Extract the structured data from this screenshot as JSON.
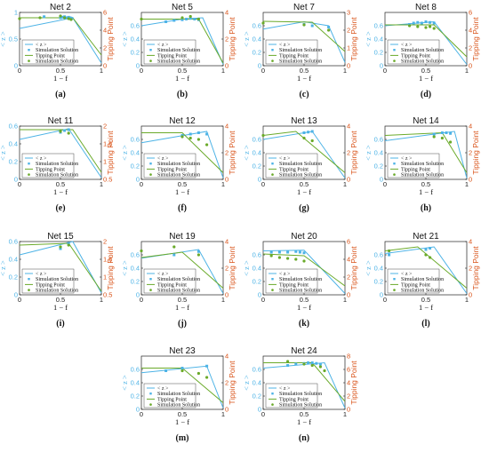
{
  "colors": {
    "blue": "#4db3e6",
    "green": "#6aaa2a",
    "orange": "#d95319",
    "axis": "#222222"
  },
  "panel_common": {
    "xlabel": "1 − f",
    "ylabel_left": "< z >",
    "ylabel_right": "Tipping Point",
    "xticks": [
      "0",
      "0.5",
      "1"
    ],
    "legend": [
      "< z >",
      "Simulation Solution",
      "Tipping Point",
      "Simulation Solution"
    ]
  },
  "chart_data": [
    {
      "type": "line",
      "title": "Net 2",
      "caption": "(a)",
      "xlim": [
        0,
        1
      ],
      "ylim_left": [
        0,
        1
      ],
      "yticks_left": [
        0,
        0.5,
        1
      ],
      "ylim_right": [
        0,
        6
      ],
      "yticks_right": [
        0,
        2,
        4,
        6
      ],
      "z_line": {
        "x": [
          0,
          0.65,
          1
        ],
        "y": [
          0.7,
          0.9,
          0.05
        ]
      },
      "z_points": {
        "x": [
          0.3,
          0.5,
          0.52,
          0.55,
          0.58,
          0.6,
          0.62,
          0.64
        ],
        "y": [
          0.92,
          0.9,
          0.91,
          0.92,
          0.9,
          0.91,
          0.9,
          0.89
        ]
      },
      "tp_line": {
        "x": [
          0,
          0.65,
          1
        ],
        "y": [
          5.4,
          5.4,
          1.2
        ]
      },
      "tp_points": {
        "x": [
          0,
          0.25,
          0.5,
          0.55,
          0.6,
          0.63
        ],
        "y": [
          5.3,
          5.4,
          5.6,
          5.4,
          5.3,
          5.2
        ]
      }
    },
    {
      "type": "line",
      "title": "Net 5",
      "caption": "(b)",
      "xlim": [
        0,
        1
      ],
      "ylim_left": [
        0,
        0.8
      ],
      "yticks_left": [
        0,
        0.2,
        0.4,
        0.6
      ],
      "ylim_right": [
        0,
        4
      ],
      "yticks_right": [
        0,
        2,
        4
      ],
      "z_line": {
        "x": [
          0,
          0.5,
          0.75,
          1
        ],
        "y": [
          0.6,
          0.7,
          0.72,
          0.02
        ]
      },
      "z_points": {
        "x": [
          0.3,
          0.4,
          0.5,
          0.55,
          0.6,
          0.65,
          0.7
        ],
        "y": [
          0.66,
          0.68,
          0.69,
          0.7,
          0.71,
          0.7,
          0.69
        ]
      },
      "tp_line": {
        "x": [
          0,
          0.7,
          1
        ],
        "y": [
          3.5,
          3.5,
          0.2
        ]
      },
      "tp_points": {
        "x": [
          0,
          0.5,
          0.6,
          0.7
        ],
        "y": [
          3.5,
          3.6,
          3.7,
          3.5
        ]
      }
    },
    {
      "type": "line",
      "title": "Net 7",
      "caption": "(c)",
      "xlim": [
        0,
        1
      ],
      "ylim_left": [
        0,
        0.8
      ],
      "yticks_left": [
        0,
        0.2,
        0.4,
        0.6
      ],
      "ylim_right": [
        0,
        3
      ],
      "yticks_right": [
        0,
        1,
        2,
        3
      ],
      "z_line": {
        "x": [
          0,
          0.5,
          0.8,
          1
        ],
        "y": [
          0.55,
          0.66,
          0.6,
          0.05
        ]
      },
      "z_points": {
        "x": [
          0.5,
          0.6,
          0.8
        ],
        "y": [
          0.62,
          0.6,
          0.58
        ]
      },
      "tp_line": {
        "x": [
          0,
          0.6,
          1
        ],
        "y": [
          2.5,
          2.45,
          0.8
        ]
      },
      "tp_points": {
        "x": [
          0,
          0.5,
          0.8
        ],
        "y": [
          2.4,
          2.3,
          2.0
        ]
      }
    },
    {
      "type": "line",
      "title": "Net 8",
      "caption": "(d)",
      "xlim": [
        0,
        1
      ],
      "ylim_left": [
        0,
        0.8
      ],
      "yticks_left": [
        0,
        0.2,
        0.4,
        0.6
      ],
      "ylim_right": [
        0,
        6
      ],
      "yticks_right": [
        0,
        2,
        4,
        6
      ],
      "z_line": {
        "x": [
          0,
          0.6,
          1
        ],
        "y": [
          0.6,
          0.66,
          0.02
        ]
      },
      "z_points": {
        "x": [
          0.3,
          0.35,
          0.4,
          0.45,
          0.5,
          0.55,
          0.6
        ],
        "y": [
          0.62,
          0.64,
          0.65,
          0.64,
          0.66,
          0.65,
          0.64
        ]
      },
      "tp_line": {
        "x": [
          0,
          0.6,
          1
        ],
        "y": [
          4.6,
          4.6,
          1.0
        ]
      },
      "tp_points": {
        "x": [
          0.3,
          0.4,
          0.5,
          0.55,
          0.6
        ],
        "y": [
          4.5,
          4.4,
          4.3,
          4.4,
          4.2
        ]
      }
    },
    {
      "type": "line",
      "title": "Net 11",
      "caption": "(e)",
      "xlim": [
        0,
        1
      ],
      "ylim_left": [
        0,
        0.6
      ],
      "yticks_left": [
        0,
        0.2,
        0.4,
        0.6
      ],
      "ylim_right": [
        0.5,
        2
      ],
      "yticks_right": [
        0.5,
        1,
        1.5,
        2
      ],
      "z_line": {
        "x": [
          0,
          0.6,
          1
        ],
        "y": [
          0.45,
          0.57,
          0.02
        ]
      },
      "z_points": {
        "x": [
          0.5,
          0.55,
          0.6
        ],
        "y": [
          0.53,
          0.55,
          0.56
        ]
      },
      "tp_line": {
        "x": [
          0,
          0.65,
          1
        ],
        "y": [
          1.9,
          1.9,
          0.7
        ]
      },
      "tp_points": {
        "x": [
          0.5,
          0.6
        ],
        "y": [
          1.85,
          1.8
        ]
      }
    },
    {
      "type": "line",
      "title": "Net 12",
      "caption": "(f)",
      "xlim": [
        0,
        1
      ],
      "ylim_left": [
        0,
        0.8
      ],
      "yticks_left": [
        0,
        0.2,
        0.4,
        0.6
      ],
      "ylim_right": [
        0,
        4
      ],
      "yticks_right": [
        0,
        2,
        4
      ],
      "z_line": {
        "x": [
          0,
          0.8,
          1
        ],
        "y": [
          0.55,
          0.72,
          0.02
        ]
      },
      "z_points": {
        "x": [
          0.5,
          0.6,
          0.7,
          0.8
        ],
        "y": [
          0.66,
          0.68,
          0.7,
          0.68
        ]
      },
      "tp_line": {
        "x": [
          0,
          0.5,
          1
        ],
        "y": [
          3.5,
          3.5,
          0.5
        ]
      },
      "tp_points": {
        "x": [
          0.5,
          0.6,
          0.7,
          0.8
        ],
        "y": [
          3.2,
          3.1,
          3.0,
          2.6
        ]
      }
    },
    {
      "type": "line",
      "title": "Net 13",
      "caption": "(g)",
      "xlim": [
        0,
        1
      ],
      "ylim_left": [
        0,
        0.8
      ],
      "yticks_left": [
        0,
        0.2,
        0.4,
        0.6
      ],
      "ylim_right": [
        0,
        4
      ],
      "yticks_right": [
        0,
        2,
        4
      ],
      "z_line": {
        "x": [
          0,
          0.6,
          1
        ],
        "y": [
          0.6,
          0.72,
          0.02
        ]
      },
      "z_points": {
        "x": [
          0.5,
          0.55,
          0.6
        ],
        "y": [
          0.7,
          0.71,
          0.72
        ]
      },
      "tp_line": {
        "x": [
          0,
          0.4,
          1
        ],
        "y": [
          3.3,
          3.6,
          0.5
        ]
      },
      "tp_points": {
        "x": [
          0,
          0.5,
          0.6
        ],
        "y": [
          3.3,
          3.1,
          2.9
        ]
      }
    },
    {
      "type": "line",
      "title": "Net 14",
      "caption": "(h)",
      "xlim": [
        0,
        1
      ],
      "ylim_left": [
        0,
        0.8
      ],
      "yticks_left": [
        0,
        0.2,
        0.4,
        0.6
      ],
      "ylim_right": [
        0,
        4
      ],
      "yticks_right": [
        0,
        2,
        4
      ],
      "z_line": {
        "x": [
          0,
          0.85,
          1
        ],
        "y": [
          0.58,
          0.72,
          0.02
        ]
      },
      "z_points": {
        "x": [
          0.6,
          0.7,
          0.75,
          0.8
        ],
        "y": [
          0.68,
          0.7,
          0.7,
          0.69
        ]
      },
      "tp_line": {
        "x": [
          0,
          0.7,
          1
        ],
        "y": [
          3.3,
          3.5,
          0.5
        ]
      },
      "tp_points": {
        "x": [
          0.6,
          0.7,
          0.8
        ],
        "y": [
          3.2,
          3.1,
          2.8
        ]
      }
    },
    {
      "type": "line",
      "title": "Net 15",
      "caption": "(i)",
      "xlim": [
        0,
        1
      ],
      "ylim_left": [
        0,
        0.6
      ],
      "yticks_left": [
        0,
        0.2,
        0.4,
        0.6
      ],
      "ylim_right": [
        0.5,
        2
      ],
      "yticks_right": [
        0.5,
        1,
        1.5,
        2
      ],
      "z_line": {
        "x": [
          0,
          0.65,
          1
        ],
        "y": [
          0.45,
          0.6,
          0.02
        ]
      },
      "z_points": {
        "x": [
          0.5,
          0.6
        ],
        "y": [
          0.52,
          0.58
        ]
      },
      "tp_line": {
        "x": [
          0,
          0.6,
          1
        ],
        "y": [
          1.9,
          1.95,
          0.6
        ]
      },
      "tp_points": {
        "x": [
          0.5,
          0.6
        ],
        "y": [
          1.85,
          1.9
        ]
      }
    },
    {
      "type": "line",
      "title": "Net 19",
      "caption": "(j)",
      "xlim": [
        0,
        1
      ],
      "ylim_left": [
        0,
        0.8
      ],
      "yticks_left": [
        0,
        0.2,
        0.4,
        0.6
      ],
      "ylim_right": [
        0,
        4
      ],
      "yticks_right": [
        0,
        2,
        4
      ],
      "z_line": {
        "x": [
          0,
          0.7,
          1
        ],
        "y": [
          0.55,
          0.68,
          0.02
        ]
      },
      "z_points": {
        "x": [
          0.4,
          0.7
        ],
        "y": [
          0.6,
          0.65
        ]
      },
      "tp_line": {
        "x": [
          0,
          0.5,
          1
        ],
        "y": [
          2.8,
          3.2,
          0.5
        ]
      },
      "tp_points": {
        "x": [
          0,
          0.4,
          0.7
        ],
        "y": [
          3.3,
          3.6,
          3.0
        ]
      }
    },
    {
      "type": "line",
      "title": "Net 20",
      "caption": "(k)",
      "xlim": [
        0,
        1
      ],
      "ylim_left": [
        0,
        0.8
      ],
      "yticks_left": [
        0,
        0.2,
        0.4,
        0.6
      ],
      "ylim_right": [
        0,
        6
      ],
      "yticks_right": [
        0,
        2,
        4,
        6
      ],
      "z_line": {
        "x": [
          0,
          0.5,
          1
        ],
        "y": [
          0.66,
          0.67,
          0.02
        ]
      },
      "z_points": {
        "x": [
          0.1,
          0.2,
          0.3,
          0.4,
          0.45,
          0.5
        ],
        "y": [
          0.64,
          0.64,
          0.64,
          0.65,
          0.64,
          0.63
        ]
      },
      "tp_line": {
        "x": [
          0,
          0.5,
          1
        ],
        "y": [
          4.6,
          4.4,
          1.0
        ]
      },
      "tp_points": {
        "x": [
          0.1,
          0.2,
          0.3,
          0.4,
          0.5
        ],
        "y": [
          4.4,
          4.2,
          4.1,
          4.0,
          3.8
        ]
      }
    },
    {
      "type": "line",
      "title": "Net 21",
      "caption": "(l)",
      "xlim": [
        0,
        1
      ],
      "ylim_left": [
        0,
        0.8
      ],
      "yticks_left": [
        0,
        0.2,
        0.4,
        0.6
      ],
      "ylim_right": [
        0,
        4
      ],
      "yticks_right": [
        0,
        2,
        4
      ],
      "z_line": {
        "x": [
          0,
          0.6,
          1
        ],
        "y": [
          0.62,
          0.72,
          0.02
        ]
      },
      "z_points": {
        "x": [
          0.05,
          0.5,
          0.55
        ],
        "y": [
          0.6,
          0.68,
          0.7
        ]
      },
      "tp_line": {
        "x": [
          0,
          0.4,
          1
        ],
        "y": [
          3.3,
          3.6,
          0.5
        ]
      },
      "tp_points": {
        "x": [
          0.05,
          0.5,
          0.55
        ],
        "y": [
          3.3,
          3.0,
          2.8
        ]
      }
    },
    {
      "type": "line",
      "title": "Net 23",
      "caption": "(m)",
      "xlim": [
        0,
        1
      ],
      "ylim_left": [
        0,
        0.8
      ],
      "yticks_left": [
        0,
        0.2,
        0.4,
        0.6
      ],
      "ylim_right": [
        0,
        4
      ],
      "yticks_right": [
        0,
        2,
        4
      ],
      "z_line": {
        "x": [
          0,
          0.8,
          1
        ],
        "y": [
          0.55,
          0.65,
          0.02
        ]
      },
      "z_points": {
        "x": [
          0.3,
          0.5,
          0.8
        ],
        "y": [
          0.58,
          0.62,
          0.65
        ]
      },
      "tp_line": {
        "x": [
          0,
          0.5,
          1
        ],
        "y": [
          3.1,
          3.1,
          0.5
        ]
      },
      "tp_points": {
        "x": [
          0.5,
          0.7,
          0.8
        ],
        "y": [
          2.9,
          2.7,
          2.4
        ]
      }
    },
    {
      "type": "line",
      "title": "Net 24",
      "caption": "(n)",
      "xlim": [
        0,
        1
      ],
      "ylim_left": [
        0,
        0.8
      ],
      "yticks_left": [
        0,
        0.2,
        0.4,
        0.6
      ],
      "ylim_right": [
        0,
        8
      ],
      "yticks_right": [
        0,
        2,
        4,
        6,
        8
      ],
      "z_line": {
        "x": [
          0,
          0.75,
          1
        ],
        "y": [
          0.62,
          0.7,
          0.02
        ]
      },
      "z_points": {
        "x": [
          0.3,
          0.4,
          0.5,
          0.55,
          0.6,
          0.65,
          0.7
        ],
        "y": [
          0.66,
          0.68,
          0.69,
          0.7,
          0.7,
          0.69,
          0.68
        ]
      },
      "tp_line": {
        "x": [
          0,
          0.6,
          1
        ],
        "y": [
          7.0,
          7.0,
          1.2
        ]
      },
      "tp_points": {
        "x": [
          0.3,
          0.5,
          0.6,
          0.7,
          0.75
        ],
        "y": [
          7.2,
          6.8,
          6.6,
          6.4,
          5.8
        ]
      }
    }
  ]
}
